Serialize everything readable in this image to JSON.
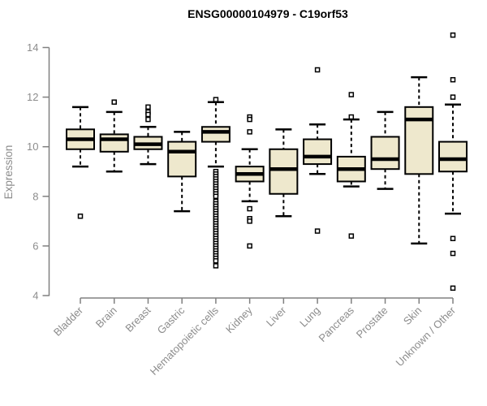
{
  "chart_data": {
    "type": "boxplot",
    "title": "ENSG00000104979 - C19orf53",
    "xlabel": "",
    "ylabel": "Expression",
    "ylim": [
      4,
      14
    ],
    "yticks": [
      4,
      6,
      8,
      10,
      12,
      14
    ],
    "grid": false,
    "legend": "none",
    "colors": {
      "box_fill": "#EEE8CD",
      "box_stroke": "#000000",
      "median": "#000000",
      "whisker": "#000000",
      "outlier_stroke": "#000000",
      "outlier_fill": "#ffffff",
      "axis_line": "#808080",
      "axis_text": "#8C8C8C",
      "title_text": "#000000",
      "background": "#ffffff"
    },
    "categories": [
      "Bladder",
      "Brain",
      "Breast",
      "Gastric",
      "Hematopoietic cells",
      "Kidney",
      "Liver",
      "Lung",
      "Pancreas",
      "Prostate",
      "Skin",
      "Unknown / Other"
    ],
    "series": [
      {
        "category": "Bladder",
        "whisker_low": 9.2,
        "q1": 9.9,
        "median": 10.3,
        "q3": 10.7,
        "whisker_high": 11.6,
        "outliers": [
          7.2
        ]
      },
      {
        "category": "Brain",
        "whisker_low": 9.0,
        "q1": 9.8,
        "median": 10.3,
        "q3": 10.5,
        "whisker_high": 11.4,
        "outliers": [
          11.8
        ]
      },
      {
        "category": "Breast",
        "whisker_low": 9.3,
        "q1": 9.9,
        "median": 10.1,
        "q3": 10.4,
        "whisker_high": 10.8,
        "outliers": [
          11.6,
          11.4,
          11.3,
          11.1
        ]
      },
      {
        "category": "Gastric",
        "whisker_low": 7.4,
        "q1": 8.8,
        "median": 9.8,
        "q3": 10.2,
        "whisker_high": 10.6,
        "outliers": []
      },
      {
        "category": "Hematopoietic cells",
        "whisker_low": 9.2,
        "q1": 10.2,
        "median": 10.6,
        "q3": 10.8,
        "whisker_high": 11.8,
        "outliers": [
          11.9,
          9.0,
          8.9,
          8.8,
          8.7,
          8.6,
          8.5,
          8.4,
          8.3,
          8.2,
          8.1,
          8.0,
          7.8,
          7.7,
          7.6,
          7.5,
          7.4,
          7.3,
          7.2,
          7.1,
          7.0,
          6.9,
          6.8,
          6.7,
          6.6,
          6.5,
          6.4,
          6.3,
          6.2,
          6.1,
          6.0,
          5.9,
          5.8,
          5.7,
          5.6,
          5.5,
          5.4,
          5.2
        ]
      },
      {
        "category": "Kidney",
        "whisker_low": 7.8,
        "q1": 8.6,
        "median": 8.9,
        "q3": 9.2,
        "whisker_high": 9.9,
        "outliers": [
          11.2,
          11.1,
          10.6,
          7.5,
          7.1,
          7.0,
          6.0
        ]
      },
      {
        "category": "Liver",
        "whisker_low": 7.2,
        "q1": 8.1,
        "median": 9.1,
        "q3": 9.9,
        "whisker_high": 10.7,
        "outliers": []
      },
      {
        "category": "Lung",
        "whisker_low": 8.9,
        "q1": 9.3,
        "median": 9.6,
        "q3": 10.3,
        "whisker_high": 10.9,
        "outliers": [
          13.1,
          6.6
        ]
      },
      {
        "category": "Pancreas",
        "whisker_low": 8.4,
        "q1": 8.6,
        "median": 9.1,
        "q3": 9.6,
        "whisker_high": 11.1,
        "outliers": [
          12.1,
          11.2,
          6.4
        ]
      },
      {
        "category": "Prostate",
        "whisker_low": 8.3,
        "q1": 9.1,
        "median": 9.5,
        "q3": 10.4,
        "whisker_high": 11.4,
        "outliers": []
      },
      {
        "category": "Skin",
        "whisker_low": 6.1,
        "q1": 8.9,
        "median": 11.1,
        "q3": 11.6,
        "whisker_high": 12.8,
        "outliers": []
      },
      {
        "category": "Unknown / Other",
        "whisker_low": 7.3,
        "q1": 9.0,
        "median": 9.5,
        "q3": 10.2,
        "whisker_high": 11.7,
        "outliers": [
          14.5,
          12.7,
          12.0,
          6.3,
          5.7,
          4.3
        ]
      }
    ]
  }
}
